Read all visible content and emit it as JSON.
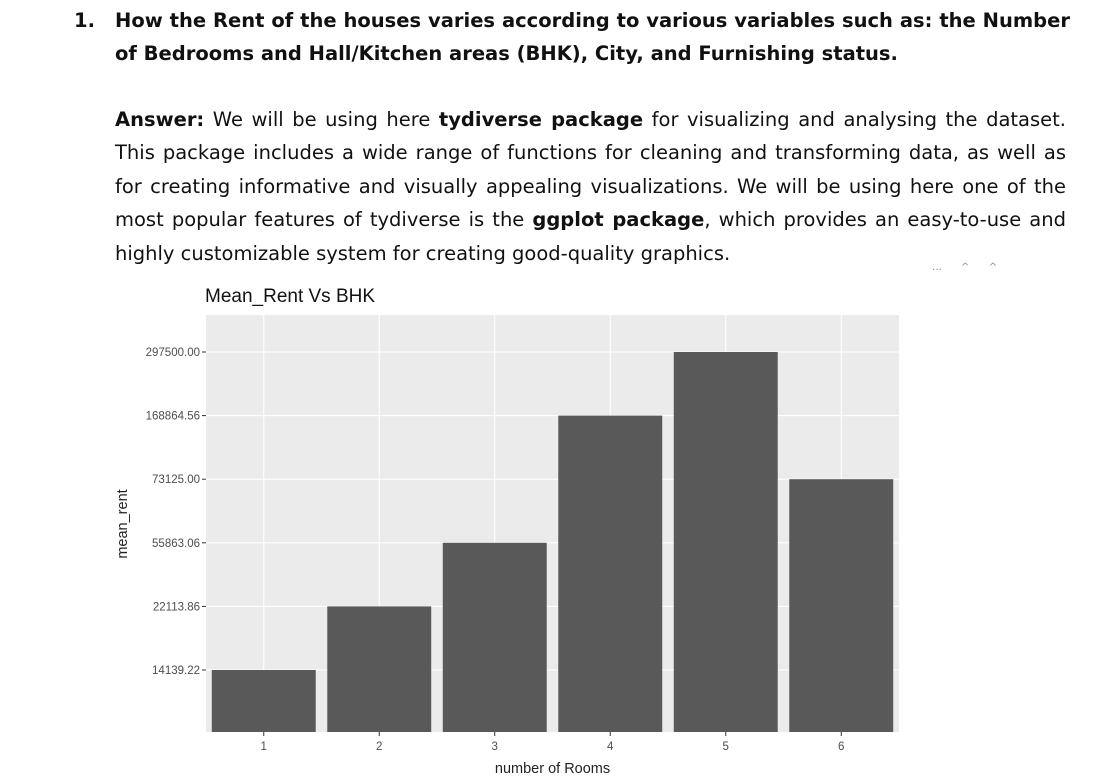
{
  "question": {
    "number": "1.",
    "text": "How the Rent of the houses varies according to various variables such as: the Number of Bedrooms and Hall/Kitchen areas (BHK), City, and Furnishing status."
  },
  "answer": {
    "label": "Answer:",
    "part1": " We will be using here ",
    "bold1": "tydiverse package",
    "part2": " for visualizing and analysing the dataset. This package includes a wide range of functions for cleaning and transforming data, as well as for creating informative and visually appealing visualizations. We will be using here one of the most popular features of tydiverse is the ",
    "bold2": "ggplot package",
    "part3": ", which provides an easy-to-use and highly customizable system for creating good-quality graphics."
  },
  "marks": "… ^ ^",
  "chart_data": {
    "type": "bar",
    "title": "Mean_Rent Vs BHK",
    "xlabel": "number of Rooms",
    "ylabel": "mean_rent",
    "categories": [
      "1",
      "2",
      "3",
      "4",
      "5",
      "6"
    ],
    "values": [
      "14139.22",
      "22113.86",
      "55863.06",
      "168864.56",
      "297500.00",
      "73125.00"
    ],
    "y_ticks": [
      "14139.22",
      "22113.86",
      "55863.06",
      "73125.00",
      "168864.56",
      "297500.00"
    ],
    "y_scale": "discrete",
    "colors": {
      "bar": "#595959",
      "panel": "#ebebeb",
      "grid": "#ffffff",
      "text": "#4d4d4d"
    }
  }
}
